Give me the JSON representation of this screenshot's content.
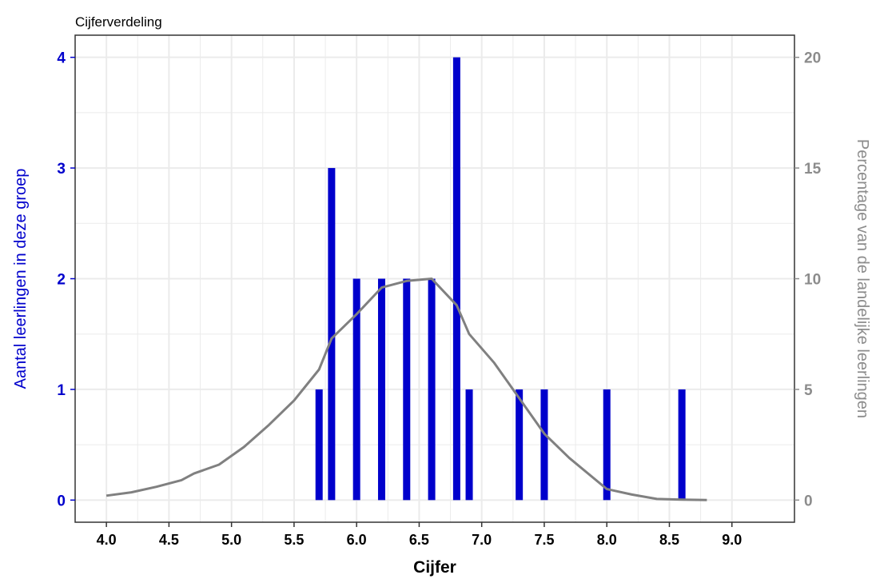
{
  "chart_data": {
    "type": "bar",
    "title": "Cijferverdeling",
    "xlabel": "Cijfer",
    "ylabel_left": "Aantal leerlingen in deze groep",
    "ylabel_right": "Percentage van de landelijke leerlingen",
    "xlim": [
      3.75,
      9.5
    ],
    "x_ticks": [
      "4.0",
      "4.5",
      "5.0",
      "5.5",
      "6.0",
      "6.5",
      "7.0",
      "7.5",
      "8.0",
      "8.5",
      "9.0"
    ],
    "ylim_left": [
      -0.2,
      4.2
    ],
    "y_ticks_left": [
      "0",
      "1",
      "2",
      "3",
      "4"
    ],
    "ylim_right": [
      -1,
      21
    ],
    "y_ticks_right": [
      "0",
      "5",
      "10",
      "15",
      "20"
    ],
    "grid": true,
    "series": [
      {
        "type": "bar",
        "axis": "left",
        "color": "#0000cc",
        "x": [
          5.7,
          5.8,
          6.0,
          6.2,
          6.4,
          6.6,
          6.8,
          6.9,
          7.3,
          7.5,
          8.0,
          8.6
        ],
        "values": [
          1,
          3,
          2,
          2,
          2,
          2,
          4,
          1,
          1,
          1,
          1,
          1
        ]
      },
      {
        "type": "line",
        "axis": "right",
        "color": "#808080",
        "x": [
          4.0,
          4.2,
          4.4,
          4.6,
          4.7,
          4.9,
          5.1,
          5.3,
          5.5,
          5.7,
          5.8,
          6.0,
          6.2,
          6.4,
          6.6,
          6.8,
          6.9,
          7.1,
          7.3,
          7.5,
          7.7,
          8.0,
          8.2,
          8.4,
          8.6,
          8.8
        ],
        "values": [
          0.2,
          0.35,
          0.6,
          0.9,
          1.2,
          1.6,
          2.4,
          3.4,
          4.5,
          5.9,
          7.3,
          8.4,
          9.6,
          9.9,
          10.0,
          8.8,
          7.5,
          6.2,
          4.6,
          3.0,
          1.9,
          0.5,
          0.25,
          0.05,
          0.02,
          0.0
        ]
      }
    ],
    "colors": {
      "left_axis": "#0000cc",
      "right_axis": "#8c8c8c",
      "grid": "#ebebeb",
      "panel_border": "#333333"
    }
  }
}
